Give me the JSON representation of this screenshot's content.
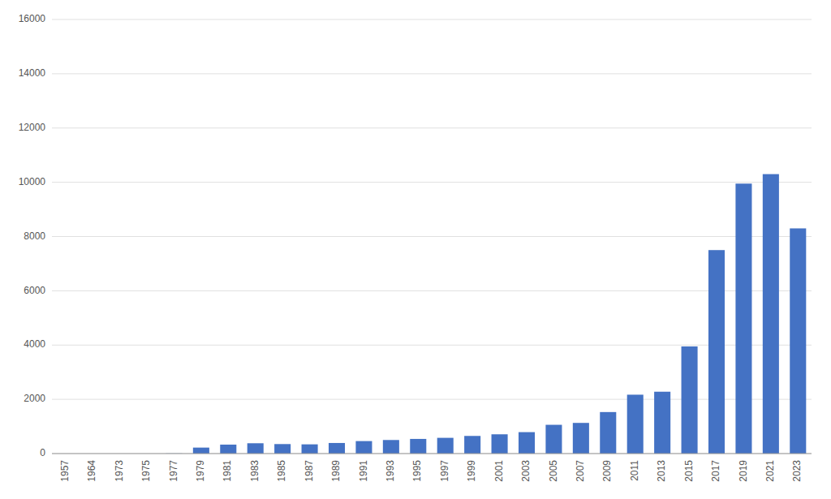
{
  "chart_data": {
    "type": "bar",
    "categories": [
      "1957",
      "1964",
      "1973",
      "1975",
      "1977",
      "1979",
      "1981",
      "1983",
      "1985",
      "1987",
      "1989",
      "1991",
      "1993",
      "1995",
      "1997",
      "1999",
      "2001",
      "2003",
      "2005",
      "2007",
      "2009",
      "2011",
      "2013",
      "2015",
      "2017",
      "2019",
      "2021",
      "2023"
    ],
    "values": [
      0,
      0,
      0,
      0,
      5,
      220,
      330,
      380,
      350,
      340,
      390,
      460,
      500,
      540,
      580,
      650,
      710,
      790,
      1060,
      1130,
      1530,
      2170,
      2280,
      3950,
      7500,
      9950,
      10300,
      8300
    ],
    "color": "#4472C4",
    "ylim": [
      0,
      16000
    ],
    "yticks": [
      0,
      2000,
      4000,
      6000,
      8000,
      10000,
      12000,
      14000,
      16000
    ],
    "grid": true
  }
}
